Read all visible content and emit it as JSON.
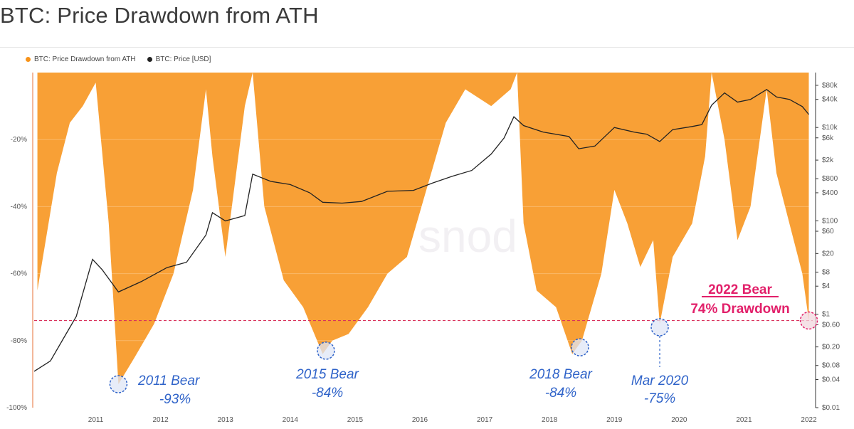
{
  "header": {
    "title": "BTC: Price Drawdown from ATH"
  },
  "legend": {
    "drawdown": {
      "label": "BTC: Price Drawdown from ATH",
      "color": "#f7931a"
    },
    "price": {
      "label": "BTC: Price [USD]",
      "color": "#222222"
    }
  },
  "watermark": "snod",
  "chart_data": {
    "type": "area",
    "x_ticks": [
      "2011",
      "2012",
      "2013",
      "2014",
      "2015",
      "2016",
      "2017",
      "2018",
      "2019",
      "2020",
      "2021",
      "2022"
    ],
    "left_axis": {
      "ticks": [
        "-20%",
        "-40%",
        "-60%",
        "-80%",
        "-100%"
      ],
      "range": [
        -100,
        0
      ]
    },
    "right_axis": {
      "scale": "log",
      "ticks": [
        "$80k",
        "$40k",
        "$10k",
        "$6k",
        "$2k",
        "$800",
        "$400",
        "$100",
        "$60",
        "$20",
        "$8",
        "$4",
        "$1",
        "$0.60",
        "$0.20",
        "$0.08",
        "$0.04",
        "$0.01"
      ]
    },
    "series": [
      {
        "name": "BTC: Price Drawdown from ATH",
        "color": "#f7931a",
        "x": [
          2010.6,
          2010.9,
          2011.1,
          2011.3,
          2011.5,
          2011.7,
          2011.85,
          2012.1,
          2012.4,
          2012.7,
          2013.0,
          2013.2,
          2013.3,
          2013.5,
          2013.8,
          2013.92,
          2014.1,
          2014.4,
          2014.7,
          2015.0,
          2015.15,
          2015.4,
          2015.7,
          2016.0,
          2016.3,
          2016.6,
          2016.9,
          2017.2,
          2017.6,
          2017.9,
          2018.0,
          2018.1,
          2018.3,
          2018.6,
          2018.85,
          2019.0,
          2019.3,
          2019.5,
          2019.7,
          2019.9,
          2020.1,
          2020.2,
          2020.4,
          2020.7,
          2020.9,
          2021.0,
          2021.2,
          2021.4,
          2021.6,
          2021.85,
          2022.0,
          2022.2,
          2022.4,
          2022.5
        ],
        "values": [
          -65,
          -30,
          -15,
          -10,
          -3,
          -45,
          -93,
          -85,
          -75,
          -60,
          -35,
          -5,
          -25,
          -55,
          -10,
          0,
          -40,
          -62,
          -70,
          -84,
          -80,
          -78,
          -70,
          -60,
          -55,
          -35,
          -15,
          -5,
          -10,
          -5,
          0,
          -45,
          -65,
          -70,
          -84,
          -80,
          -60,
          -35,
          -45,
          -58,
          -50,
          -75,
          -55,
          -45,
          -25,
          0,
          -20,
          -50,
          -40,
          -5,
          -30,
          -45,
          -60,
          -74
        ]
      },
      {
        "name": "BTC: Price [USD]",
        "color": "#222222",
        "x": [
          2010.55,
          2010.8,
          2011.0,
          2011.2,
          2011.45,
          2011.6,
          2011.85,
          2012.2,
          2012.6,
          2012.9,
          2013.2,
          2013.3,
          2013.5,
          2013.8,
          2013.92,
          2014.2,
          2014.5,
          2014.8,
          2015.0,
          2015.3,
          2015.6,
          2016.0,
          2016.4,
          2016.7,
          2017.0,
          2017.3,
          2017.6,
          2017.8,
          2017.95,
          2018.1,
          2018.4,
          2018.8,
          2018.95,
          2019.2,
          2019.5,
          2019.8,
          2020.0,
          2020.2,
          2020.4,
          2020.7,
          2020.85,
          2021.0,
          2021.2,
          2021.4,
          2021.6,
          2021.85,
          2022.0,
          2022.2,
          2022.4,
          2022.5
        ],
        "values": [
          0.06,
          0.1,
          0.3,
          0.9,
          15,
          9,
          3,
          5,
          10,
          13,
          50,
          150,
          100,
          130,
          1000,
          700,
          600,
          400,
          250,
          240,
          260,
          430,
          450,
          650,
          900,
          1200,
          2700,
          6000,
          17000,
          11000,
          8000,
          6400,
          3500,
          4000,
          10000,
          8000,
          7200,
          5000,
          9000,
          10500,
          11500,
          30000,
          55000,
          35000,
          40000,
          65000,
          45000,
          40000,
          28000,
          19000
        ]
      }
    ]
  },
  "annotations": {
    "a2011": {
      "line1": "2011 Bear",
      "line2": "-93%"
    },
    "a2015": {
      "line1": "2015 Bear",
      "line2": "-84%"
    },
    "a2018": {
      "line1": "2018 Bear",
      "line2": "-84%"
    },
    "a2020": {
      "line1": "Mar 2020",
      "line2": "-75%"
    },
    "a2022": {
      "line1": "2022 Bear",
      "line2": "74% Drawdown"
    }
  }
}
